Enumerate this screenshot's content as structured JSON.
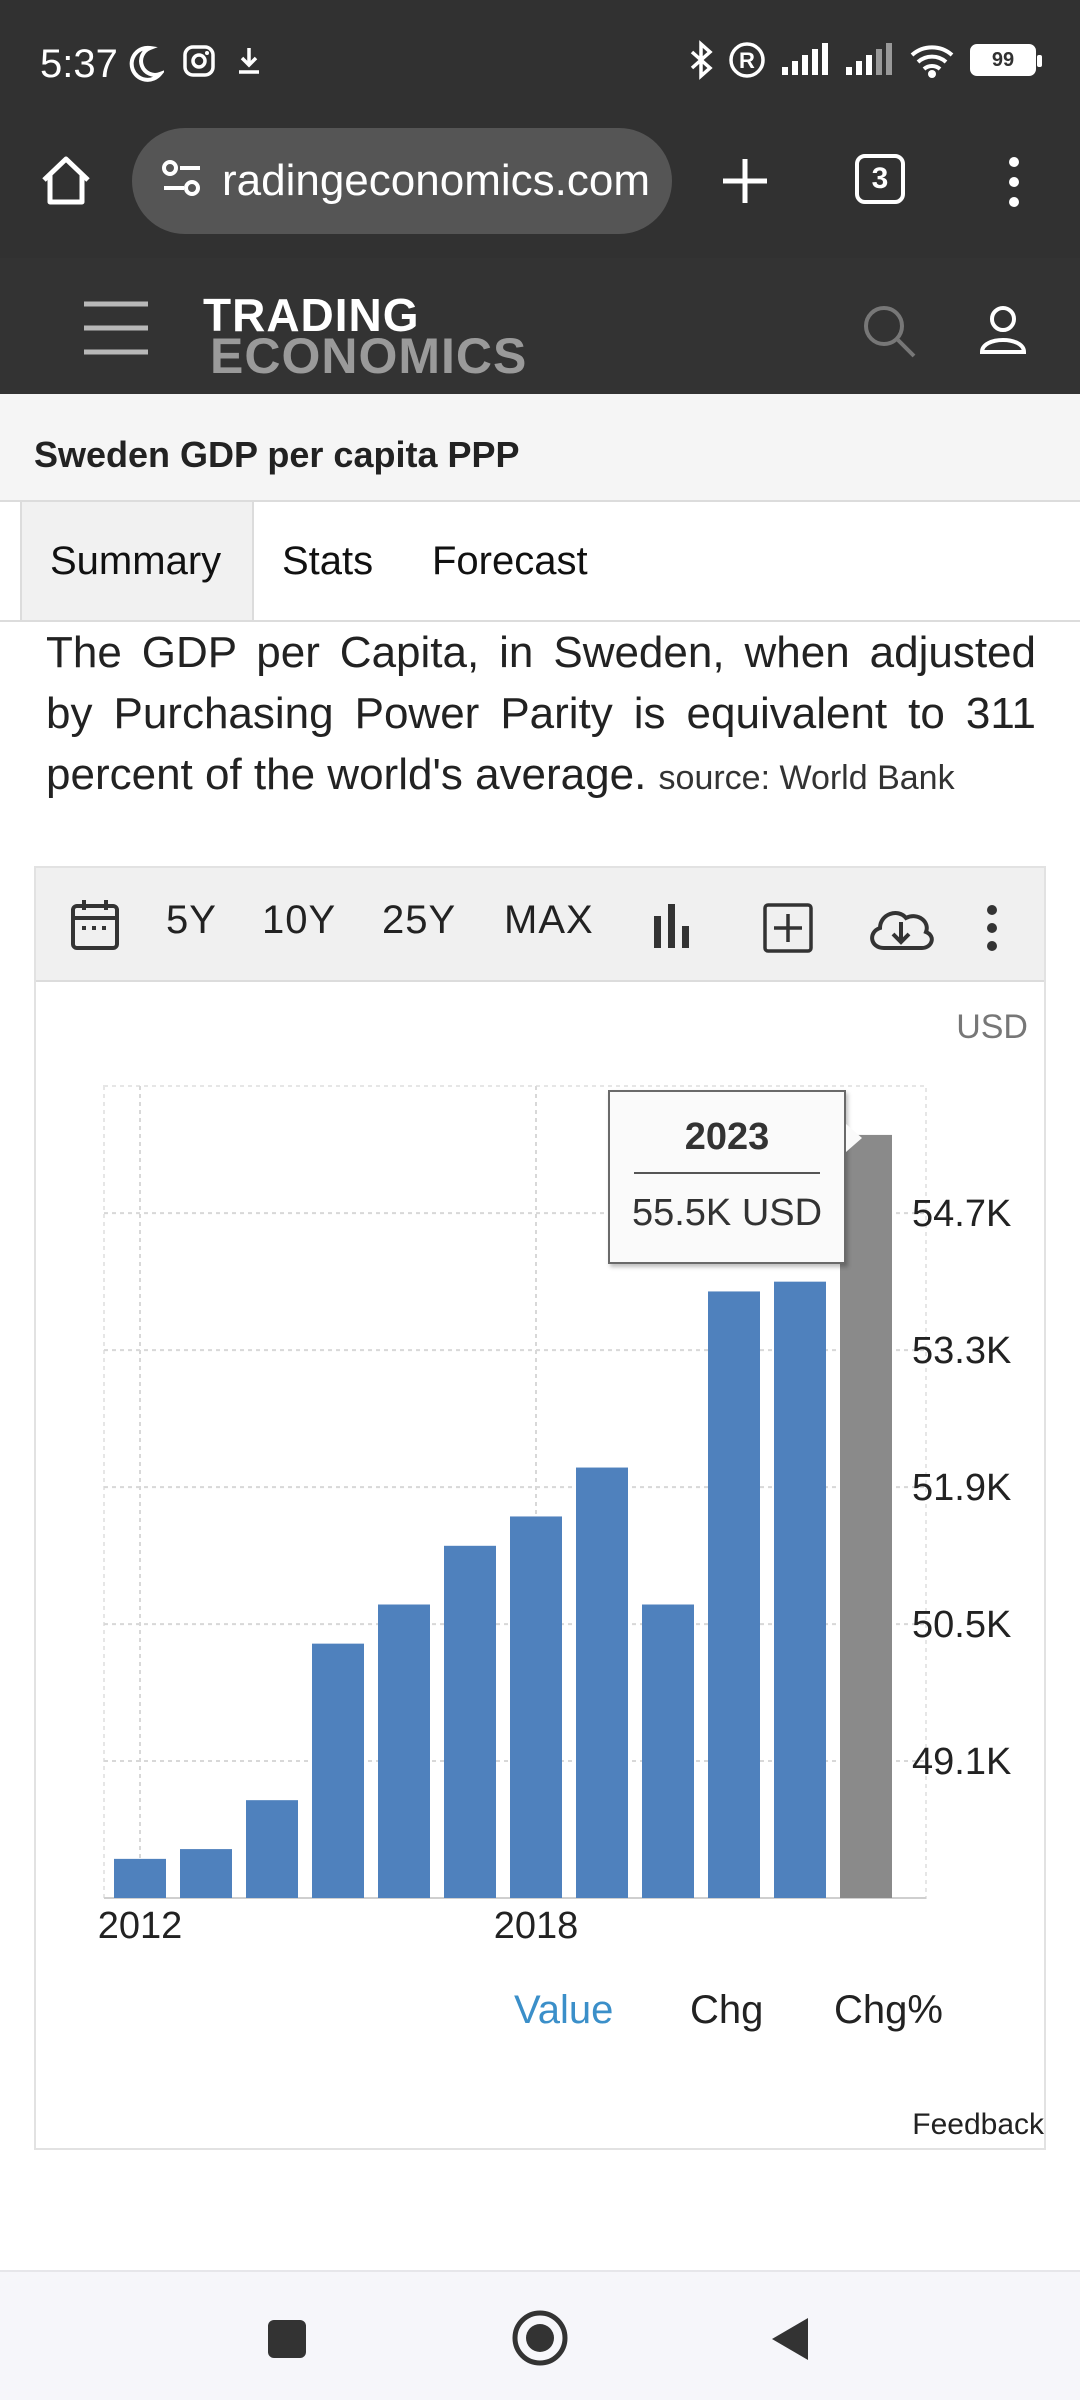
{
  "status_bar": {
    "time": "5:37",
    "battery": "99"
  },
  "browser": {
    "url": "radingeconomics.com",
    "tab_count": "3"
  },
  "site": {
    "logo_line1": "TRADING",
    "logo_line2": "ECONOMICS"
  },
  "page": {
    "title": "Sweden GDP per capita PPP",
    "tabs": [
      "Summary",
      "Stats",
      "Forecast"
    ],
    "description": "The GDP per Capita, in Sweden, when adjusted by Purchasing Power Parity is equivalent to 311 percent of the world's average.",
    "source": "source: World Bank"
  },
  "chart_toolbar": {
    "ranges": [
      "5Y",
      "10Y",
      "25Y",
      "MAX"
    ]
  },
  "chart_unit": "USD",
  "tooltip": {
    "year": "2023",
    "value": "55.5K USD"
  },
  "chart_data": {
    "type": "bar",
    "categories": [
      "2012",
      "2013",
      "2014",
      "2015",
      "2016",
      "2017",
      "2018",
      "2019",
      "2020",
      "2021",
      "2022",
      "2023"
    ],
    "values": [
      48.1,
      48.2,
      48.7,
      50.3,
      50.7,
      51.3,
      51.6,
      52.1,
      50.7,
      53.9,
      54.0,
      55.5
    ],
    "x_tick_labels": [
      "2012",
      "2018"
    ],
    "y_tick_labels": [
      "49.1K",
      "50.5K",
      "51.9K",
      "53.3K",
      "54.7K"
    ],
    "y_ticks": [
      49.1,
      50.5,
      51.9,
      53.3,
      54.7
    ],
    "ylim": [
      47.7,
      56.0
    ],
    "highlighted": "2023",
    "colors": {
      "bar": "#4f81bd",
      "highlight": "#8a8a8a"
    }
  },
  "chart_modes": [
    "Value",
    "Chg",
    "Chg%"
  ],
  "feedback": "Feedback"
}
